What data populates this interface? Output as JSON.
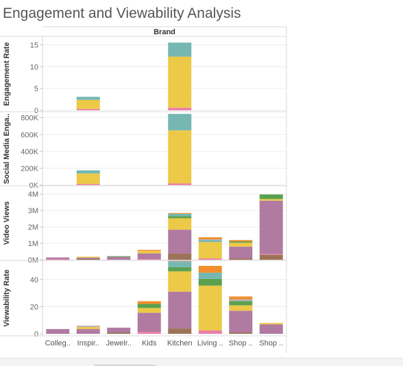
{
  "title": "Engagement and Viewability Analysis",
  "colors": {
    "pink": "#eb7fa8",
    "brown": "#9c7358",
    "purple": "#b07aa1",
    "yellow": "#edc948",
    "teal": "#76b7b2",
    "green": "#59a14f",
    "orange": "#f28e2b",
    "gray": "#bab0ac"
  },
  "chart_data": {
    "type": "bar",
    "stacked": true,
    "column_header": "Brand",
    "categories": [
      "Colleg..",
      "Inspir..",
      "Jewelr..",
      "Kids",
      "Kitchen",
      "Living ..",
      "Shop ..",
      "Shop .."
    ],
    "segment_order": [
      "pink",
      "brown",
      "purple",
      "yellow",
      "gray",
      "teal",
      "green",
      "orange"
    ],
    "panels": [
      {
        "label": "Engagement Rate",
        "ylim": [
          0,
          16
        ],
        "ticks": [
          {
            "v": 0,
            "t": "0"
          },
          {
            "v": 5,
            "t": "5"
          },
          {
            "v": 10,
            "t": "10"
          },
          {
            "v": 15,
            "t": "15"
          }
        ],
        "bars": [
          [],
          [
            {
              "c": "pink",
              "v": 0.3
            },
            {
              "c": "yellow",
              "v": 2.1
            },
            {
              "c": "teal",
              "v": 0.7
            }
          ],
          [],
          [],
          [
            {
              "c": "pink",
              "v": 0.6
            },
            {
              "c": "yellow",
              "v": 11.7
            },
            {
              "c": "teal",
              "v": 3.2
            }
          ],
          [],
          [],
          []
        ]
      },
      {
        "label": "Social Media Enga..",
        "ylim": [
          0,
          830000
        ],
        "ticks": [
          {
            "v": 0,
            "t": "0K"
          },
          {
            "v": 200000,
            "t": "200K"
          },
          {
            "v": 400000,
            "t": "400K"
          },
          {
            "v": 600000,
            "t": "600K"
          },
          {
            "v": 800000,
            "t": "800K"
          }
        ],
        "bars": [
          [],
          [
            {
              "c": "pink",
              "v": 12000
            },
            {
              "c": "yellow",
              "v": 125000
            },
            {
              "c": "teal",
              "v": 38000
            }
          ],
          [],
          [],
          [
            {
              "c": "pink",
              "v": 20000
            },
            {
              "c": "yellow",
              "v": 630000
            },
            {
              "c": "teal",
              "v": 195000
            }
          ],
          [],
          [],
          []
        ]
      },
      {
        "label": "Video Views",
        "ylim": [
          0,
          4050000
        ],
        "ticks": [
          {
            "v": 0,
            "t": "0M"
          },
          {
            "v": 1000000,
            "t": "1M"
          },
          {
            "v": 2000000,
            "t": "2M"
          },
          {
            "v": 3000000,
            "t": "3M"
          },
          {
            "v": 4000000,
            "t": "4M"
          }
        ],
        "bars": [
          [
            {
              "c": "pink",
              "v": 30000
            },
            {
              "c": "purple",
              "v": 110000
            }
          ],
          [
            {
              "c": "brown",
              "v": 60000
            },
            {
              "c": "purple",
              "v": 70000
            },
            {
              "c": "yellow",
              "v": 60000
            }
          ],
          [
            {
              "c": "purple",
              "v": 180000
            },
            {
              "c": "green",
              "v": 40000
            }
          ],
          [
            {
              "c": "pink",
              "v": 40000
            },
            {
              "c": "purple",
              "v": 350000
            },
            {
              "c": "yellow",
              "v": 150000
            },
            {
              "c": "orange",
              "v": 60000
            }
          ],
          [
            {
              "c": "brown",
              "v": 380000
            },
            {
              "c": "purple",
              "v": 1450000
            },
            {
              "c": "yellow",
              "v": 700000
            },
            {
              "c": "green",
              "v": 120000
            },
            {
              "c": "teal",
              "v": 150000
            },
            {
              "c": "orange",
              "v": 50000
            }
          ],
          [
            {
              "c": "pink",
              "v": 80000
            },
            {
              "c": "yellow",
              "v": 1000000
            },
            {
              "c": "teal",
              "v": 110000
            },
            {
              "c": "gray",
              "v": 60000
            },
            {
              "c": "orange",
              "v": 120000
            }
          ],
          [
            {
              "c": "brown",
              "v": 80000
            },
            {
              "c": "purple",
              "v": 720000
            },
            {
              "c": "yellow",
              "v": 240000
            },
            {
              "c": "green",
              "v": 80000
            },
            {
              "c": "orange",
              "v": 80000
            }
          ],
          [
            {
              "c": "brown",
              "v": 300000
            },
            {
              "c": "pink",
              "v": 50000
            },
            {
              "c": "purple",
              "v": 3250000
            },
            {
              "c": "yellow",
              "v": 100000
            },
            {
              "c": "green",
              "v": 280000
            }
          ]
        ]
      },
      {
        "label": "Viewability Rate",
        "ylim": [
          -2,
          52
        ],
        "ticks": [
          {
            "v": 0,
            "t": "0"
          },
          {
            "v": 20,
            "t": "20"
          },
          {
            "v": 40,
            "t": "40"
          }
        ],
        "bars": [
          [
            {
              "c": "purple",
              "v": 3.5
            }
          ],
          [
            {
              "c": "purple",
              "v": 3.5
            },
            {
              "c": "yellow",
              "v": 1.5
            },
            {
              "c": "gray",
              "v": 1
            }
          ],
          [
            {
              "c": "brown",
              "v": 1
            },
            {
              "c": "purple",
              "v": 3.5
            }
          ],
          [
            {
              "c": "pink",
              "v": 1.5
            },
            {
              "c": "purple",
              "v": 14
            },
            {
              "c": "yellow",
              "v": 3.5
            },
            {
              "c": "green",
              "v": 3
            },
            {
              "c": "orange",
              "v": 2
            }
          ],
          [
            {
              "c": "brown",
              "v": 4
            },
            {
              "c": "purple",
              "v": 27
            },
            {
              "c": "yellow",
              "v": 15
            },
            {
              "c": "green",
              "v": 3
            },
            {
              "c": "teal",
              "v": 4
            },
            {
              "c": "gray",
              "v": 1
            }
          ],
          [
            {
              "c": "pink",
              "v": 2.5
            },
            {
              "c": "yellow",
              "v": 33
            },
            {
              "c": "green",
              "v": 5
            },
            {
              "c": "teal",
              "v": 4.5
            },
            {
              "c": "orange",
              "v": 5
            }
          ],
          [
            {
              "c": "brown",
              "v": 1
            },
            {
              "c": "purple",
              "v": 16
            },
            {
              "c": "yellow",
              "v": 4
            },
            {
              "c": "green",
              "v": 3
            },
            {
              "c": "gray",
              "v": 1.5
            },
            {
              "c": "orange",
              "v": 2
            }
          ],
          [
            {
              "c": "purple",
              "v": 7
            },
            {
              "c": "yellow",
              "v": 1
            }
          ]
        ]
      }
    ]
  }
}
